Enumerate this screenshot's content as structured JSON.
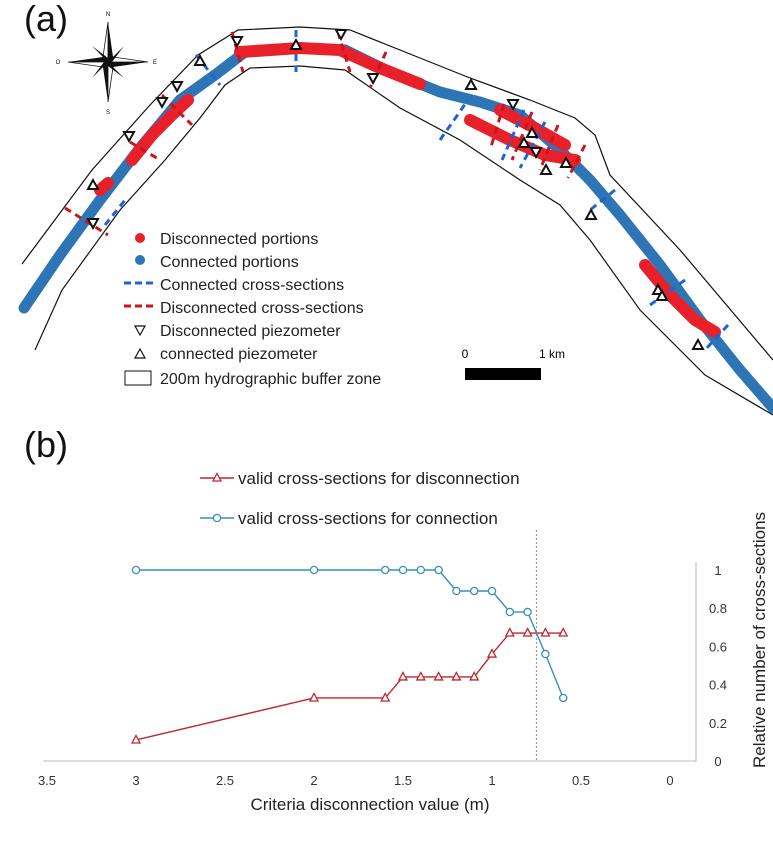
{
  "panel_a": {
    "label": "(a)",
    "compass": {
      "n": "N",
      "s": "S",
      "e": "E",
      "o": "O"
    },
    "legend": [
      {
        "key": "disconnected",
        "text": "Disconnected portions"
      },
      {
        "key": "connected",
        "text": "Connected portions"
      },
      {
        "key": "connected_cs",
        "text": "Connected cross-sections"
      },
      {
        "key": "disconnected_cs",
        "text": "Disconnected cross-sections"
      },
      {
        "key": "disc_piezo",
        "text": "Disconnected piezometer"
      },
      {
        "key": "conn_piezo",
        "text": "connected piezometer"
      },
      {
        "key": "buffer",
        "text": "200m hydrographic buffer zone"
      }
    ],
    "scale_bar": {
      "start": "0",
      "end": "1 km"
    },
    "colors": {
      "connected": "#2e75b6",
      "disconnected": "#e8202a",
      "connected_cs": "#1f62d6",
      "disconnected_cs": "#c8161c"
    }
  },
  "panel_b": {
    "label": "(b)",
    "colors": {
      "connection": "#3a8dbf",
      "disconnection": "#c0272d",
      "threshold": "#999999"
    }
  },
  "chart_data": {
    "type": "line",
    "xlabel": "Criteria disconnection value (m)",
    "ylabel": "Relative number of cross-sections",
    "x_reversed": true,
    "xlim": [
      3.5,
      0
    ],
    "ylim": [
      0,
      1
    ],
    "x_ticks": [
      "3.5",
      "3",
      "2.5",
      "2",
      "1.5",
      "1",
      "0.5",
      "0"
    ],
    "y_ticks": [
      "0",
      "0.2",
      "0.4",
      "0.6",
      "0.8",
      "1"
    ],
    "threshold_line_x": 0.75,
    "legend_position": "top",
    "series": [
      {
        "name": "valid cross-sections for disconnection",
        "marker": "triangle",
        "x": [
          3,
          2,
          1.6,
          1.5,
          1.4,
          1.3,
          1.2,
          1.1,
          1.0,
          0.9,
          0.8,
          0.7,
          0.6
        ],
        "y": [
          0.11,
          0.33,
          0.33,
          0.44,
          0.44,
          0.44,
          0.44,
          0.44,
          0.56,
          0.67,
          0.67,
          0.67,
          0.67
        ]
      },
      {
        "name": "valid cross-sections for connection",
        "marker": "circle",
        "x": [
          3,
          2,
          1.6,
          1.5,
          1.4,
          1.3,
          1.2,
          1.1,
          1.0,
          0.9,
          0.8,
          0.7,
          0.6
        ],
        "y": [
          1.0,
          1.0,
          1.0,
          1.0,
          1.0,
          1.0,
          0.89,
          0.89,
          0.89,
          0.78,
          0.78,
          0.56,
          0.33
        ]
      }
    ]
  }
}
